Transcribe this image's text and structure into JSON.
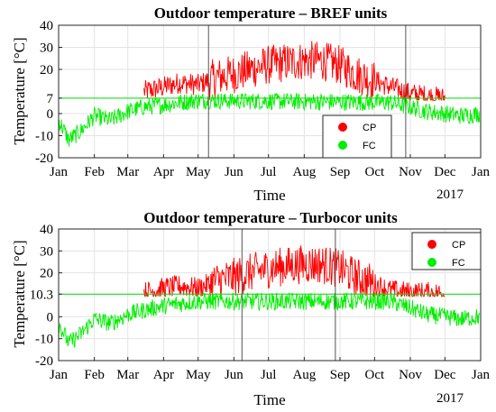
{
  "chart_data": [
    {
      "type": "line",
      "title": "Outdoor temperature – BREF units",
      "xlabel": "Time",
      "ylabel": "Temperature [°C]",
      "ylim": [
        -20,
        40
      ],
      "yticks": [
        -20,
        -10,
        0,
        7,
        20,
        30,
        40
      ],
      "ytick_labels": [
        "-20",
        "-10",
        "0",
        "7",
        "20",
        "30",
        "40"
      ],
      "xlim": [
        "2016-01-01",
        "2017-01-01"
      ],
      "xtick_labels": [
        "Jan",
        "Feb",
        "Mar",
        "Apr",
        "May",
        "Jun",
        "Jul",
        "Aug",
        "Sep",
        "Oct",
        "Nov",
        "Dec",
        "Jan"
      ],
      "x_year_label": "2017",
      "grid": true,
      "threshold": 7,
      "threshold_color": "#00e000",
      "vertical_markers": [
        "2016-05-10",
        "2016-10-28"
      ],
      "legend": {
        "position": "bottom-right",
        "entries": [
          "CP",
          "FC"
        ]
      },
      "series": [
        {
          "name": "CP",
          "color": "#ff0000",
          "x": [
            "2016-03-15",
            "2016-04-01",
            "2016-04-15",
            "2016-05-01",
            "2016-05-15",
            "2016-06-01",
            "2016-06-15",
            "2016-07-01",
            "2016-07-15",
            "2016-08-01",
            "2016-08-15",
            "2016-09-01",
            "2016-09-15",
            "2016-10-01",
            "2016-10-15",
            "2016-11-01",
            "2016-11-15",
            "2016-12-01"
          ],
          "y": [
            10,
            12,
            14,
            13,
            16,
            18,
            20,
            22,
            23,
            24,
            24,
            22,
            18,
            15,
            12,
            9,
            8,
            7
          ]
        },
        {
          "name": "FC",
          "color": "#00ee00",
          "x": [
            "2016-01-01",
            "2016-01-10",
            "2016-01-20",
            "2016-02-01",
            "2016-02-15",
            "2016-03-01",
            "2016-03-15",
            "2016-04-01",
            "2016-04-15",
            "2016-05-01",
            "2016-10-15",
            "2016-11-01",
            "2016-11-15",
            "2016-12-01",
            "2016-12-15",
            "2016-12-31"
          ],
          "y": [
            -3,
            -12,
            -8,
            -1,
            -3,
            1,
            3,
            4,
            5,
            6,
            5,
            3,
            1,
            0,
            -1,
            0
          ]
        }
      ]
    },
    {
      "type": "line",
      "title": "Outdoor temperature – Turbocor units",
      "xlabel": "Time",
      "ylabel": "Temperature [°C]",
      "ylim": [
        -20,
        40
      ],
      "yticks": [
        -20,
        -10,
        0,
        10.3,
        20,
        30,
        40
      ],
      "ytick_labels": [
        "-20",
        "-10",
        "0",
        "10.3",
        "20",
        "30",
        "40"
      ],
      "xlim": [
        "2016-01-01",
        "2017-01-01"
      ],
      "xtick_labels": [
        "Jan",
        "Feb",
        "Mar",
        "Apr",
        "May",
        "Jun",
        "Jul",
        "Aug",
        "Sep",
        "Oct",
        "Nov",
        "Dec",
        "Jan"
      ],
      "x_year_label": "2017",
      "grid": true,
      "threshold": 10.3,
      "threshold_color": "#00e000",
      "vertical_markers": [
        "2016-06-08",
        "2016-08-28"
      ],
      "legend": {
        "position": "top-right",
        "entries": [
          "CP",
          "FC"
        ]
      },
      "series": [
        {
          "name": "CP",
          "color": "#ff0000",
          "x": [
            "2016-03-15",
            "2016-04-01",
            "2016-04-15",
            "2016-05-01",
            "2016-05-15",
            "2016-06-01",
            "2016-06-15",
            "2016-07-01",
            "2016-07-15",
            "2016-08-01",
            "2016-08-15",
            "2016-09-01",
            "2016-09-15",
            "2016-10-01",
            "2016-10-15",
            "2016-11-01",
            "2016-11-15",
            "2016-12-01"
          ],
          "y": [
            11,
            13,
            14,
            13,
            16,
            18,
            20,
            22,
            23,
            24,
            24,
            22,
            18,
            15,
            12,
            11,
            11,
            10.5
          ]
        },
        {
          "name": "FC",
          "color": "#00ee00",
          "x": [
            "2016-01-01",
            "2016-01-10",
            "2016-01-20",
            "2016-02-01",
            "2016-02-15",
            "2016-03-01",
            "2016-03-15",
            "2016-04-01",
            "2016-04-15",
            "2016-05-01",
            "2016-10-15",
            "2016-11-01",
            "2016-11-15",
            "2016-12-01",
            "2016-12-15",
            "2016-12-31"
          ],
          "y": [
            -3,
            -12,
            -8,
            -1,
            -3,
            1,
            3,
            5,
            6,
            7,
            7,
            4,
            1,
            0,
            -1,
            0
          ]
        }
      ]
    }
  ]
}
